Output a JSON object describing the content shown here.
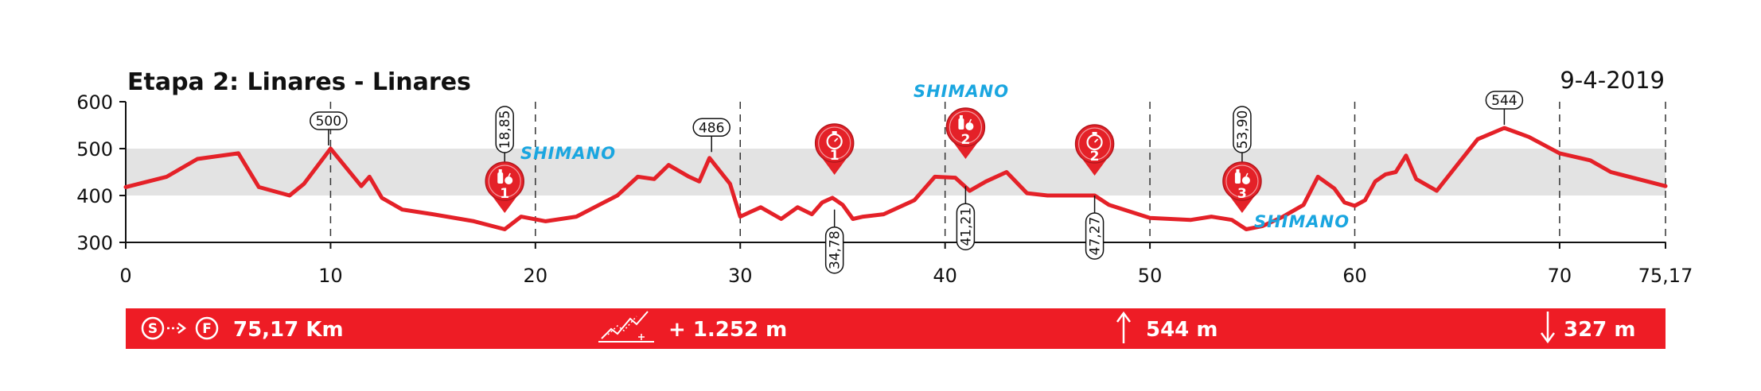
{
  "colors": {
    "profile": "#e42128",
    "band": "#e3e3e3",
    "marker": "#e42128",
    "sponsor": "#1aa6e0",
    "bar": "#ee1c25"
  },
  "chart_data": {
    "type": "line",
    "title": "Etapa 2: Linares - Linares",
    "date": "9-4-2019",
    "xlabel": "",
    "ylabel": "",
    "xlim": [
      0,
      75.17
    ],
    "ylim": [
      300,
      600
    ],
    "y_ticks": [
      300,
      400,
      500,
      600
    ],
    "x_ticks": [
      0,
      10,
      20,
      30,
      40,
      50,
      60,
      70,
      75.17
    ],
    "x_tick_labels": [
      "0",
      "10",
      "20",
      "30",
      "40",
      "50",
      "60",
      "70",
      "75,17"
    ],
    "band": [
      400,
      500
    ],
    "grid_lines_x": [
      10,
      20,
      30,
      40,
      50,
      60,
      70,
      75.17
    ],
    "series": [
      {
        "x": [
          0,
          2,
          3.5,
          5.5,
          6.5,
          8,
          8.7,
          10,
          11.5,
          11.9,
          12.5,
          13.5,
          15,
          17,
          18.5,
          19.3,
          20.5,
          22,
          24,
          25,
          25.8,
          26.5,
          27.5,
          28,
          28.5,
          29.5,
          30,
          30.5,
          31,
          32,
          32.8,
          33.5,
          34,
          34.5,
          35,
          35.5,
          36,
          37,
          38.5,
          39.5,
          40.5,
          41.2,
          42,
          43,
          44,
          45,
          46,
          47.3,
          48,
          50,
          52,
          53,
          54,
          54.7,
          55.5,
          56.5,
          57.5,
          58.2,
          59,
          59.5,
          60,
          60.5,
          61,
          61.5,
          62,
          62.5,
          63,
          64,
          65,
          66,
          67.3,
          68.5,
          70,
          71.5,
          72.5,
          75.17
        ],
        "y": [
          418,
          440,
          478,
          490,
          418,
          400,
          425,
          500,
          420,
          440,
          395,
          370,
          360,
          345,
          328,
          355,
          345,
          355,
          400,
          440,
          435,
          465,
          440,
          430,
          480,
          425,
          355,
          365,
          375,
          350,
          375,
          360,
          385,
          395,
          380,
          350,
          355,
          360,
          390,
          440,
          438,
          410,
          430,
          450,
          405,
          400,
          400,
          400,
          380,
          352,
          348,
          355,
          348,
          328,
          335,
          355,
          380,
          440,
          415,
          385,
          378,
          390,
          430,
          445,
          450,
          485,
          435,
          410,
          465,
          520,
          544,
          525,
          490,
          475,
          450,
          420
        ]
      }
    ],
    "callouts": [
      {
        "x": 9.9,
        "y": 500,
        "label": "500",
        "orientation": "horizontal"
      },
      {
        "x": 18.5,
        "y": 328,
        "label": "18,85",
        "orientation": "vertical"
      },
      {
        "x": 28.6,
        "y": 486,
        "label": "486",
        "orientation": "horizontal"
      },
      {
        "x": 34.6,
        "y": 370,
        "label": "34,78",
        "orientation": "vertical"
      },
      {
        "x": 41.0,
        "y": 420,
        "label": "41,21",
        "orientation": "vertical"
      },
      {
        "x": 47.3,
        "y": 400,
        "label": "47,27",
        "orientation": "vertical"
      },
      {
        "x": 54.5,
        "y": 330,
        "label": "53,90",
        "orientation": "vertical"
      },
      {
        "x": 67.3,
        "y": 544,
        "label": "544",
        "orientation": "horizontal"
      }
    ],
    "markers": [
      {
        "x": 18.5,
        "y": 328,
        "kind": "feed",
        "number": "1"
      },
      {
        "x": 34.6,
        "y": 370,
        "kind": "sprint",
        "number": "1"
      },
      {
        "x": 41.0,
        "y": 440,
        "kind": "feed",
        "number": "2"
      },
      {
        "x": 47.3,
        "y": 400,
        "kind": "sprint",
        "number": "2"
      },
      {
        "x": 54.5,
        "y": 330,
        "kind": "feed",
        "number": "3"
      }
    ],
    "sponsors": [
      {
        "x": 21.8,
        "y": 518,
        "label": "SHIMANO"
      },
      {
        "x": 40.8,
        "y": 605,
        "label": "SHIMANO"
      },
      {
        "x": 57.0,
        "y": 332,
        "label": "SHIMANO"
      }
    ]
  },
  "summary": {
    "start_letter": "S",
    "finish_letter": "F",
    "distance": "75,17 Km",
    "climb": "+ 1.252 m",
    "max_altitude": "544 m",
    "min_altitude": "327 m"
  }
}
